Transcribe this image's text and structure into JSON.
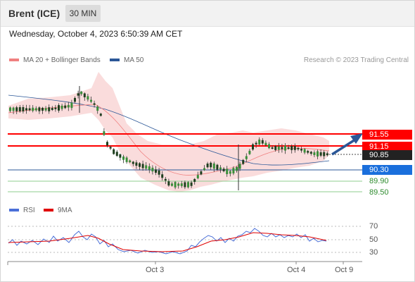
{
  "header": {
    "title": "Brent (ICE)",
    "timeframe": "30 MIN"
  },
  "datetime": "Wednesday, October 4, 2023 6:50:39 AM CET",
  "legend": {
    "ma20": {
      "label": "MA 20 + Bollinger Bands",
      "color": "#f08080"
    },
    "ma50": {
      "label": "MA 50",
      "color": "#2b5797"
    }
  },
  "credit": "Research © 2023 Trading Central",
  "levels": {
    "r2": {
      "label": "91.55",
      "value": 91.55,
      "color": "#ff0000"
    },
    "r1": {
      "label": "91.15",
      "value": 91.15,
      "color": "#ff0000"
    },
    "last": {
      "label": "90.85",
      "value": 90.85,
      "color": "#222222"
    },
    "pivot": {
      "label": "90.30",
      "value": 90.3,
      "color": "#1a6fdc"
    },
    "s1": {
      "label": "89.90",
      "value": 89.9,
      "color": "#2e8b2e"
    },
    "s2": {
      "label": "89.50",
      "value": 89.5,
      "color": "#2e8b2e"
    }
  },
  "rsi": {
    "legend_rsi": "RSI",
    "legend_ma": "9MA",
    "rsi_color": "#4a6fd8",
    "ma_color": "#e00000",
    "levels": [
      "70",
      "50",
      "30"
    ]
  },
  "xaxis": {
    "labels": [
      "Oct 3",
      "Oct 4",
      "Oct 9"
    ]
  },
  "chart_data": {
    "type": "candlestick",
    "price_levels": [
      91.55,
      91.15,
      90.85,
      90.3,
      89.9,
      89.5
    ],
    "rsi_levels": [
      70,
      50,
      30
    ],
    "x_ticks": [
      "Oct 3",
      "Oct 4",
      "Oct 9"
    ],
    "series": [
      {
        "name": "MA 20 + Bollinger Bands"
      },
      {
        "name": "MA 50"
      },
      {
        "name": "RSI"
      },
      {
        "name": "9MA"
      }
    ]
  }
}
